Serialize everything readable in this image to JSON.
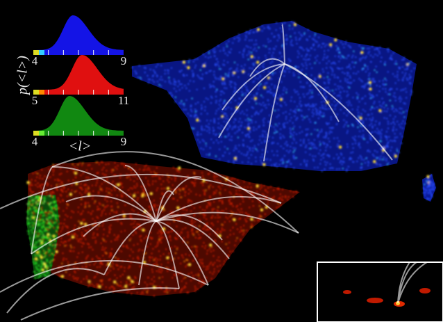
{
  "y_label": "p(<l>)",
  "x_label": "<l>",
  "panels": [
    {
      "color": "#1414e6",
      "ticks": [
        4,
        9
      ]
    },
    {
      "color": "#e01010",
      "ticks": [
        5,
        11
      ]
    },
    {
      "color": "#118811",
      "ticks": [
        4,
        9
      ]
    }
  ]
}
